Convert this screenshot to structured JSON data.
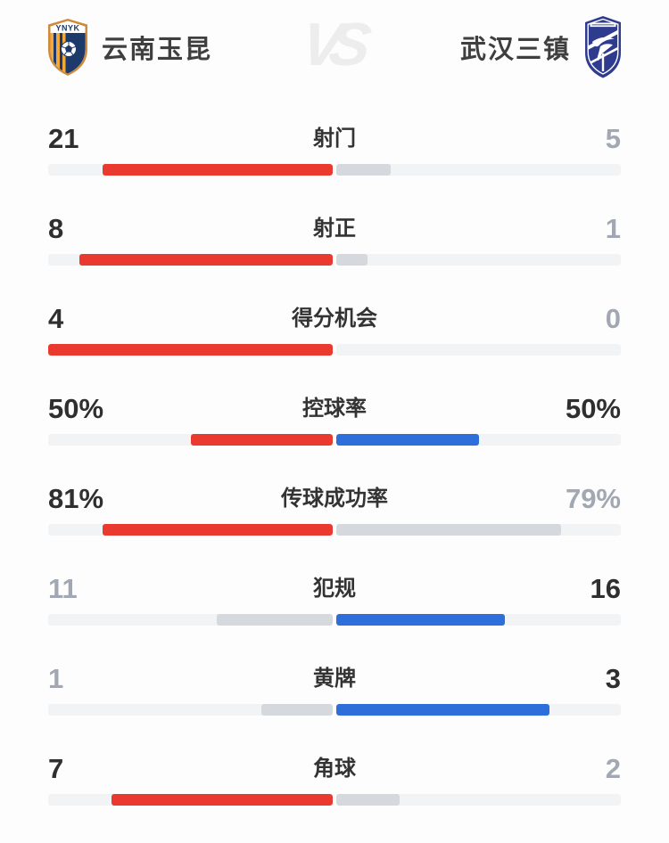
{
  "header": {
    "vs_label": "VS",
    "home": {
      "name": "云南玉昆",
      "crest_label": "YNYK"
    },
    "away": {
      "name": "武汉三镇"
    }
  },
  "colors": {
    "home_bar": "#ea392e",
    "away_bar": "#2d6edb",
    "neutral_bar": "#d5d8dc",
    "track": "#f1f3f5",
    "value_strong": "#2f2f2f",
    "value_dim": "#a2a8b2",
    "home_crest_navy": "#1d3a6b",
    "home_crest_orange": "#f2a93b",
    "away_crest_navy": "#2f3b8e"
  },
  "stats": {
    "rows": [
      {
        "label": "射门",
        "percent": false,
        "home": {
          "display": "21",
          "value": 21
        },
        "away": {
          "display": "5",
          "value": 5
        }
      },
      {
        "label": "射正",
        "percent": false,
        "home": {
          "display": "8",
          "value": 8
        },
        "away": {
          "display": "1",
          "value": 1
        }
      },
      {
        "label": "得分机会",
        "percent": false,
        "home": {
          "display": "4",
          "value": 4
        },
        "away": {
          "display": "0",
          "value": 0
        }
      },
      {
        "label": "控球率",
        "percent": true,
        "home": {
          "display": "50%",
          "value": 50
        },
        "away": {
          "display": "50%",
          "value": 50
        }
      },
      {
        "label": "传球成功率",
        "percent": true,
        "home": {
          "display": "81%",
          "value": 81
        },
        "away": {
          "display": "79%",
          "value": 79
        }
      },
      {
        "label": "犯规",
        "percent": false,
        "home": {
          "display": "11",
          "value": 11
        },
        "away": {
          "display": "16",
          "value": 16
        }
      },
      {
        "label": "黄牌",
        "percent": false,
        "home": {
          "display": "1",
          "value": 1
        },
        "away": {
          "display": "3",
          "value": 3
        }
      },
      {
        "label": "角球",
        "percent": false,
        "home": {
          "display": "7",
          "value": 7
        },
        "away": {
          "display": "2",
          "value": 2
        }
      }
    ]
  },
  "chart_data": {
    "type": "bar",
    "orientation": "horizontal-paired",
    "title": "云南玉昆 VS 武汉三镇",
    "categories": [
      "射门",
      "射正",
      "得分机会",
      "控球率",
      "传球成功率",
      "犯规",
      "黄牌",
      "角球"
    ],
    "series": [
      {
        "name": "云南玉昆",
        "color": "#ea392e",
        "values": [
          21,
          8,
          4,
          50,
          81,
          11,
          1,
          7
        ]
      },
      {
        "name": "武汉三镇",
        "color": "#2d6edb",
        "values": [
          5,
          1,
          0,
          50,
          79,
          16,
          3,
          2
        ]
      }
    ],
    "percent_categories": [
      "控球率",
      "传球成功率"
    ],
    "bar_scaling": "percent rows use value/100 of half width; count rows use value/(home+away); higher value shown colored and bold, lower value gray",
    "legend_position": "top"
  }
}
